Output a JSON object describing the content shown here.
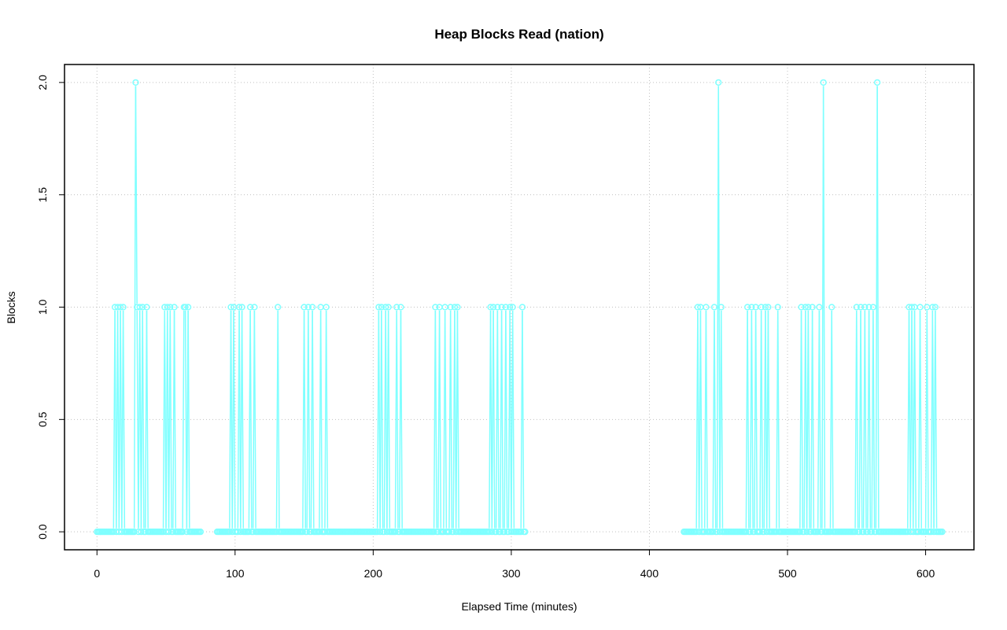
{
  "chart_data": {
    "type": "line",
    "title": "Heap Blocks Read (nation)",
    "xlabel": "Elapsed Time (minutes)",
    "ylabel": "Blocks",
    "xlim": [
      -23.5,
      635
    ],
    "ylim": [
      -0.08,
      2.08
    ],
    "x_ticks": [
      0,
      100,
      200,
      300,
      400,
      500,
      600
    ],
    "x_tick_labels": [
      "0",
      "100",
      "200",
      "300",
      "400",
      "500",
      "600"
    ],
    "y_ticks": [
      0.0,
      0.5,
      1.0,
      1.5,
      2.0
    ],
    "y_tick_labels": [
      "0.0",
      "0.5",
      "1.0",
      "1.5",
      "2.0"
    ],
    "grid": true,
    "color": "#7fffff",
    "sample_interval": 1,
    "segments": [
      {
        "start": 0,
        "end": 75
      },
      {
        "start": 87,
        "end": 310
      },
      {
        "start": 425,
        "end": 612
      }
    ],
    "series": [
      {
        "points_at_1": [
          13,
          15,
          17,
          19,
          29,
          31,
          33,
          36,
          49,
          51,
          53,
          56,
          63,
          64,
          66,
          97,
          99,
          103,
          105,
          111,
          114,
          131,
          150,
          153,
          156,
          162,
          166,
          204,
          206,
          209,
          211,
          217,
          220,
          245,
          248,
          252,
          256,
          259,
          261,
          285,
          287,
          290,
          293,
          296,
          299,
          301,
          308,
          435,
          437,
          441,
          447,
          452,
          471,
          474,
          477,
          481,
          484,
          486,
          493,
          510,
          513,
          515,
          518,
          523,
          532,
          550,
          553,
          556,
          559,
          562,
          588,
          590,
          592,
          596,
          601,
          605,
          607
        ],
        "points_at_2": [
          28,
          450,
          526,
          565
        ]
      }
    ]
  }
}
